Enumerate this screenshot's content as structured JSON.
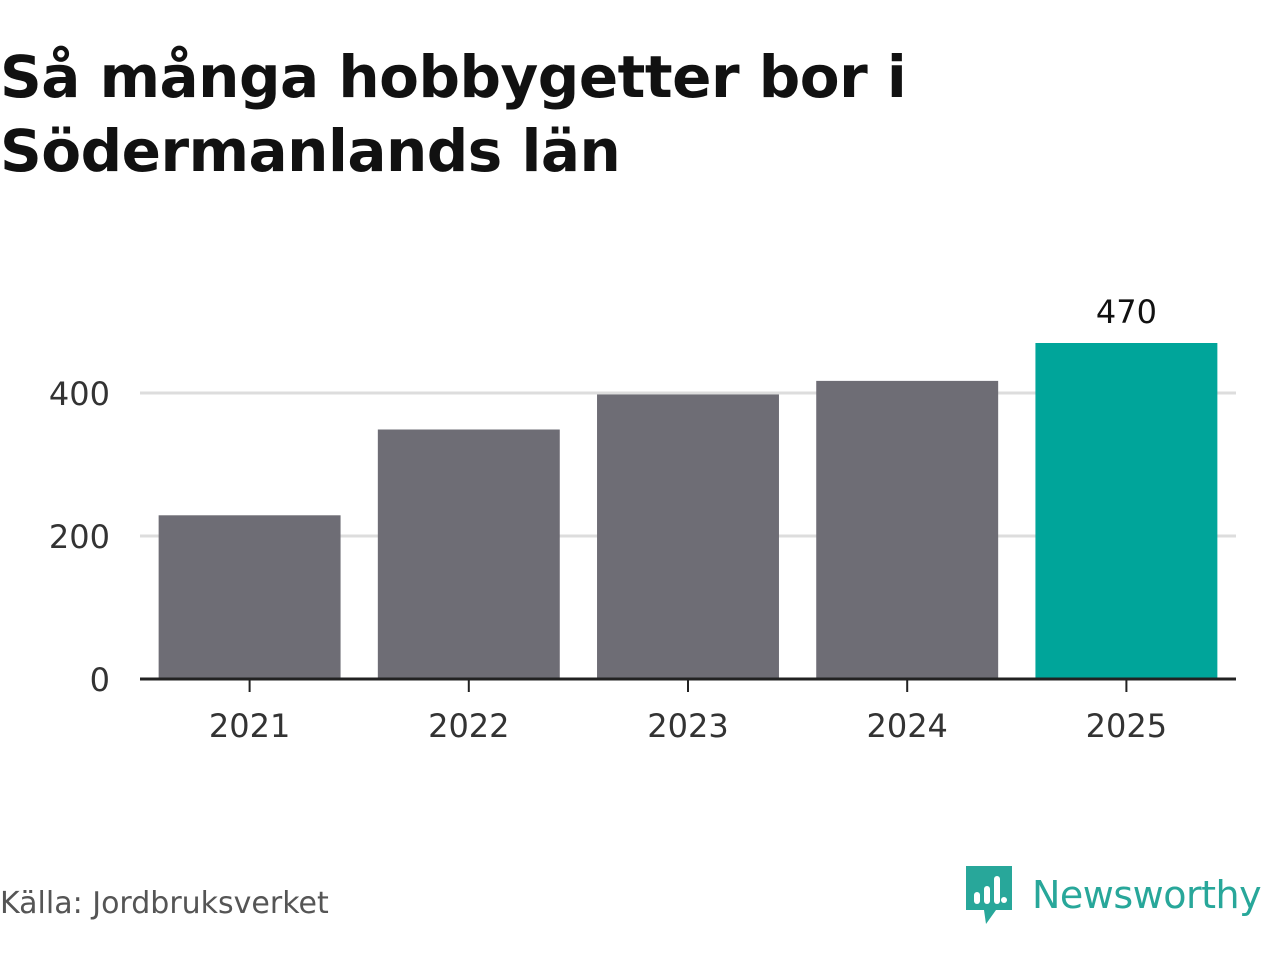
{
  "title": "Så många hobbygetter bor i Södermanlands län",
  "source": "Källa: Jordbruksverket",
  "brand": {
    "name": "Newsworthy",
    "icon": "newsworthy-logo-icon",
    "color": "#28a79a"
  },
  "colors": {
    "bar": "#6e6d75",
    "highlight": "#00a59a",
    "grid": "#dddddd",
    "axis": "#222222",
    "tick_text": "#333333"
  },
  "chart_data": {
    "type": "bar",
    "categories": [
      "2021",
      "2022",
      "2023",
      "2024",
      "2025"
    ],
    "values": [
      229,
      349,
      398,
      417,
      470
    ],
    "highlight_index": 4,
    "data_labels": [
      {
        "index": 4,
        "text": "470"
      }
    ],
    "yticks": [
      0,
      200,
      400
    ],
    "ylim": [
      0,
      470
    ],
    "grid": true,
    "xlabel": "",
    "ylabel": ""
  }
}
